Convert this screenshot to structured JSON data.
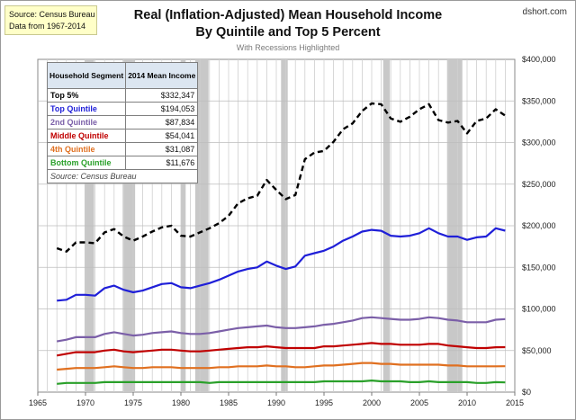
{
  "source_box": {
    "line1": "Source: Census Bureau",
    "line2": "Data from 1967-2014"
  },
  "brand": "dshort.com",
  "chart_data": {
    "type": "line",
    "title_line1": "Real (Inflation-Adjusted) Mean Household Income",
    "title_line2": "By Quintile and Top 5 Percent",
    "subtitle": "With Recessions Highlighted",
    "x": [
      1967,
      1968,
      1969,
      1970,
      1971,
      1972,
      1973,
      1974,
      1975,
      1976,
      1977,
      1978,
      1979,
      1980,
      1981,
      1982,
      1983,
      1984,
      1985,
      1986,
      1987,
      1988,
      1989,
      1990,
      1991,
      1992,
      1993,
      1994,
      1995,
      1996,
      1997,
      1998,
      1999,
      2000,
      2001,
      2002,
      2003,
      2004,
      2005,
      2006,
      2007,
      2008,
      2009,
      2010,
      2011,
      2012,
      2013,
      2014
    ],
    "xlim": [
      1965,
      2015
    ],
    "x_ticks": [
      "1965",
      "1970",
      "1975",
      "1980",
      "1985",
      "1990",
      "1995",
      "2000",
      "2005",
      "2010",
      "2015"
    ],
    "ylim": [
      0,
      400000
    ],
    "y_ticks": [
      "$0",
      "$50,000",
      "$100,000",
      "$150,000",
      "$200,000",
      "$250,000",
      "$300,000",
      "$350,000",
      "$400,000"
    ],
    "y_axis_side": "right",
    "grid": true,
    "recessions": [
      [
        1969.9,
        1970.9
      ],
      [
        1973.9,
        1975.2
      ],
      [
        1980.0,
        1980.5
      ],
      [
        1981.5,
        1982.9
      ],
      [
        1990.5,
        1991.2
      ],
      [
        2001.2,
        2001.9
      ],
      [
        2007.9,
        2009.5
      ]
    ],
    "series": [
      {
        "name": "Top 5%",
        "color": "#000000",
        "dashed": true,
        "values": [
          173000,
          169000,
          180000,
          180000,
          179000,
          192000,
          196000,
          187000,
          182000,
          187000,
          193000,
          198000,
          200000,
          188000,
          187000,
          192000,
          197000,
          203000,
          212000,
          227000,
          233000,
          236000,
          255000,
          243000,
          232000,
          237000,
          280000,
          288000,
          290000,
          301000,
          316000,
          323000,
          338000,
          347000,
          346000,
          329000,
          325000,
          331000,
          340000,
          346000,
          327000,
          324000,
          326000,
          311000,
          326000,
          329000,
          340000,
          332347
        ]
      },
      {
        "name": "Top Quintile",
        "color": "#1f1fd8",
        "values": [
          110000,
          111000,
          117000,
          117000,
          116000,
          125000,
          128000,
          123000,
          120000,
          122000,
          126000,
          130000,
          131000,
          126000,
          125000,
          128000,
          131000,
          135000,
          140000,
          145000,
          148000,
          150000,
          157000,
          152000,
          148000,
          151000,
          164000,
          167000,
          170000,
          175000,
          182000,
          187000,
          193000,
          195000,
          194000,
          188000,
          187000,
          188000,
          191000,
          197000,
          191000,
          187000,
          187000,
          183000,
          186000,
          187000,
          197000,
          194053
        ]
      },
      {
        "name": "2nd Quintile",
        "color": "#7b5fa8",
        "values": [
          61000,
          63000,
          66000,
          66000,
          66000,
          70000,
          72000,
          70000,
          68000,
          69000,
          71000,
          72000,
          73000,
          71000,
          70000,
          70000,
          71000,
          73000,
          75000,
          77000,
          78000,
          79000,
          80000,
          78000,
          77000,
          77000,
          78000,
          79000,
          81000,
          82000,
          84000,
          86000,
          89000,
          90000,
          89000,
          88000,
          87000,
          87000,
          88000,
          90000,
          89000,
          87000,
          86000,
          84000,
          84000,
          84000,
          87000,
          87834
        ]
      },
      {
        "name": "Middle Quintile",
        "color": "#c00000",
        "values": [
          44000,
          46000,
          48000,
          48000,
          48000,
          50000,
          51000,
          49000,
          48000,
          49000,
          50000,
          51000,
          51000,
          50000,
          49000,
          49000,
          50000,
          51000,
          52000,
          53000,
          54000,
          54000,
          55000,
          54000,
          53000,
          53000,
          53000,
          53000,
          55000,
          55000,
          56000,
          57000,
          58000,
          59000,
          58000,
          58000,
          57000,
          57000,
          57000,
          58000,
          58000,
          56000,
          55000,
          54000,
          53000,
          53000,
          54000,
          54041
        ]
      },
      {
        "name": "4th Quintile",
        "color": "#e07020",
        "values": [
          27000,
          28000,
          29000,
          29000,
          29000,
          30000,
          31000,
          30000,
          29000,
          29000,
          30000,
          30000,
          30000,
          29000,
          29000,
          29000,
          29000,
          30000,
          30000,
          31000,
          31000,
          31000,
          32000,
          31000,
          31000,
          30000,
          30000,
          31000,
          32000,
          32000,
          33000,
          34000,
          35000,
          35000,
          34000,
          34000,
          33000,
          33000,
          33000,
          33000,
          33000,
          32000,
          32000,
          31000,
          31000,
          31000,
          31000,
          31087
        ]
      },
      {
        "name": "Bottom Quintile",
        "color": "#2aa02a",
        "values": [
          10000,
          11000,
          11000,
          11000,
          11000,
          12000,
          12000,
          12000,
          12000,
          12000,
          12000,
          12000,
          12000,
          12000,
          12000,
          12000,
          11000,
          12000,
          12000,
          12000,
          12000,
          12000,
          12000,
          12000,
          12000,
          12000,
          12000,
          12000,
          13000,
          13000,
          13000,
          13000,
          13000,
          14000,
          13000,
          13000,
          13000,
          12000,
          12000,
          13000,
          12000,
          12000,
          12000,
          12000,
          11000,
          11000,
          12000,
          11676
        ]
      }
    ],
    "legend_table": {
      "header_segment": "Household Segment",
      "header_value": "2014 Mean Income",
      "rows": [
        {
          "label": "Top 5%",
          "value": "$332,347",
          "color": "#000000"
        },
        {
          "label": "Top Quintile",
          "value": "$194,053",
          "color": "#1f1fd8"
        },
        {
          "label": "2nd Quintile",
          "value": "$87,834",
          "color": "#7b5fa8"
        },
        {
          "label": "Middle Quintile",
          "value": "$54,041",
          "color": "#c00000"
        },
        {
          "label": "4th Quintile",
          "value": "$31,087",
          "color": "#e07020"
        },
        {
          "label": "Bottom Quintile",
          "value": "$11,676",
          "color": "#2aa02a"
        }
      ],
      "note": "Source: Census Bureau"
    }
  }
}
